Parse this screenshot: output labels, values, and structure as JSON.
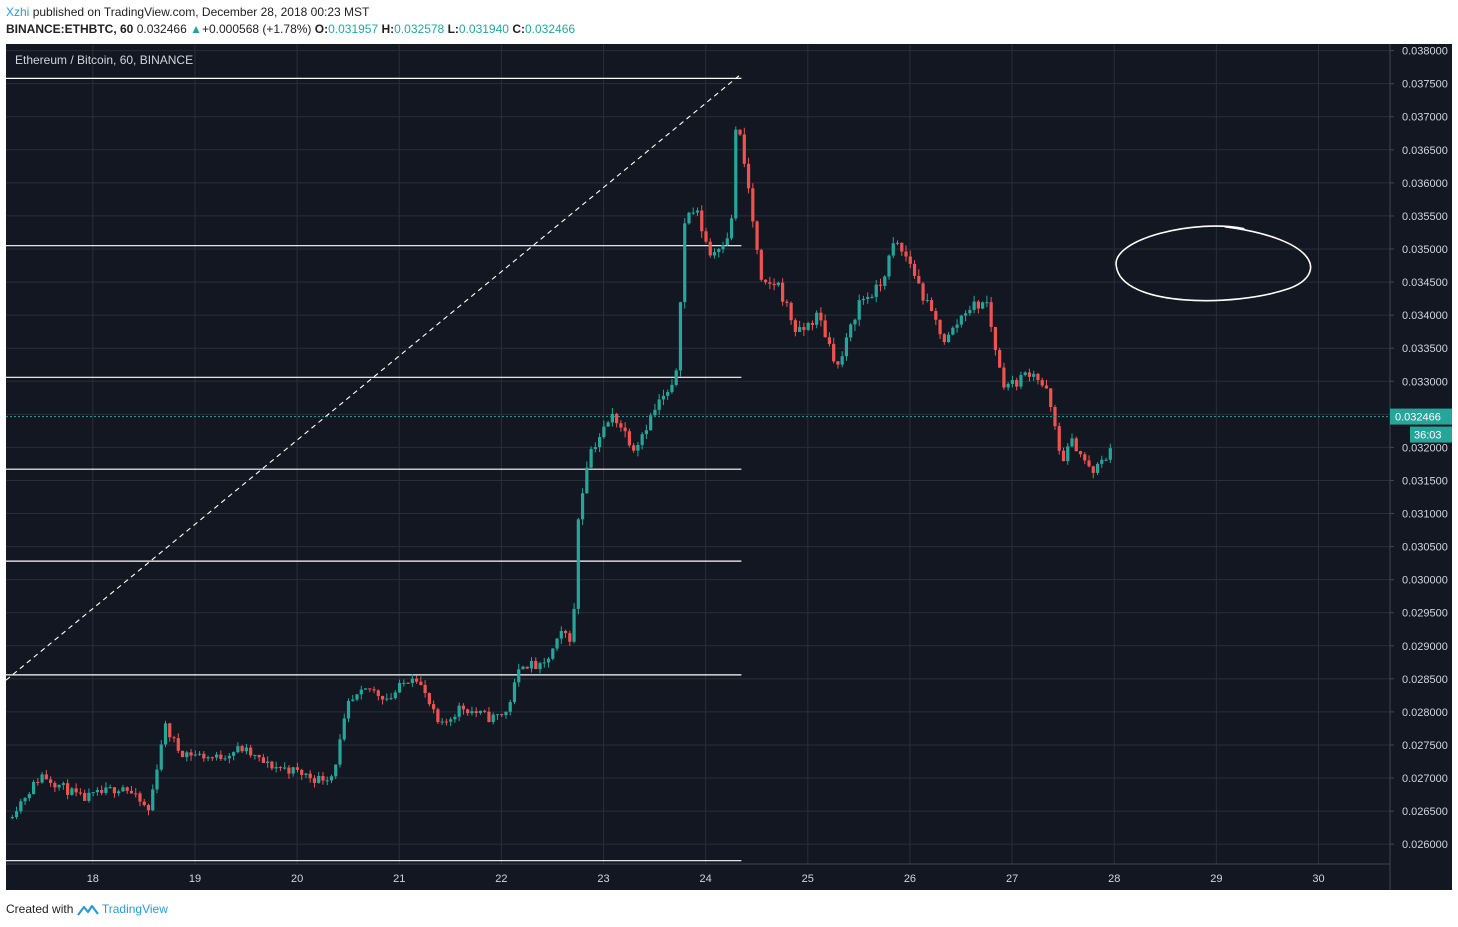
{
  "header": {
    "author": "Xzhi",
    "published": "published on TradingView.com, December 28, 2018 00:23 MST"
  },
  "ohlc": {
    "symbol": "BINANCE:ETHBTC, 60",
    "last": "0.032466",
    "arrow": "▲",
    "change": "+0.000568 (+1.78%)",
    "o_label": "O:",
    "o": "0.031957",
    "h_label": "H:",
    "h": "0.032578",
    "l_label": "L:",
    "l": "0.031940",
    "c_label": "C:",
    "c": "0.032466"
  },
  "footer": {
    "created": "Created with",
    "brand": "TradingView"
  },
  "colors": {
    "background": "#131722",
    "grid": "#2a2e39",
    "up": "#26a69a",
    "down": "#ef5350",
    "axis_text": "#d1d4dc",
    "drawing": "#ffffff",
    "price_line": "#26a69a"
  },
  "chart_data": {
    "type": "candlestick",
    "title": "Ethereum / Bitcoin, 60, BINANCE",
    "x_ticks": [
      "18",
      "19",
      "20",
      "21",
      "22",
      "23",
      "24",
      "25",
      "26",
      "27",
      "28",
      "29",
      "30"
    ],
    "x_range": [
      17.15,
      30.7
    ],
    "y_ticks": [
      "0.038000",
      "0.037500",
      "0.037000",
      "0.036500",
      "0.036000",
      "0.035500",
      "0.035000",
      "0.034500",
      "0.034000",
      "0.033500",
      "0.033000",
      "0.032500",
      "0.032000",
      "0.031500",
      "0.031000",
      "0.030500",
      "0.030000",
      "0.029500",
      "0.029000",
      "0.028500",
      "0.028000",
      "0.027500",
      "0.027000",
      "0.026500",
      "0.026000"
    ],
    "y_range": [
      0.0257,
      0.0381
    ],
    "last_price": "0.032466",
    "countdown": "36:03",
    "horizontal_levels": [
      0.03758,
      0.03505,
      0.03306,
      0.03167,
      0.03028,
      0.02856,
      0.02575
    ],
    "levels_x_range": [
      17.15,
      24.35
    ],
    "trend_line": {
      "x": [
        17.15,
        24.35
      ],
      "y": [
        0.02848,
        0.03765
      ]
    },
    "path_anchors": [
      [
        17.17,
        0.0264
      ],
      [
        17.5,
        0.02705
      ],
      [
        17.9,
        0.02668
      ],
      [
        18.3,
        0.02688
      ],
      [
        18.55,
        0.0265
      ],
      [
        18.7,
        0.0278
      ],
      [
        18.85,
        0.0274
      ],
      [
        19.2,
        0.0273
      ],
      [
        19.45,
        0.02745
      ],
      [
        19.7,
        0.0272
      ],
      [
        19.95,
        0.02712
      ],
      [
        20.2,
        0.02698
      ],
      [
        20.35,
        0.02705
      ],
      [
        20.5,
        0.0281
      ],
      [
        20.7,
        0.02835
      ],
      [
        20.9,
        0.0282
      ],
      [
        21.15,
        0.0286
      ],
      [
        21.4,
        0.02775
      ],
      [
        21.6,
        0.02808
      ],
      [
        21.9,
        0.0279
      ],
      [
        22.05,
        0.028
      ],
      [
        22.2,
        0.02875
      ],
      [
        22.4,
        0.02865
      ],
      [
        22.6,
        0.0292
      ],
      [
        22.7,
        0.0291
      ],
      [
        22.75,
        0.0309
      ],
      [
        22.85,
        0.0319
      ],
      [
        23.1,
        0.0325
      ],
      [
        23.3,
        0.032
      ],
      [
        23.55,
        0.0327
      ],
      [
        23.7,
        0.0329
      ],
      [
        23.8,
        0.0355
      ],
      [
        23.9,
        0.0356
      ],
      [
        24.05,
        0.0349
      ],
      [
        24.25,
        0.0353
      ],
      [
        24.3,
        0.037
      ],
      [
        24.42,
        0.0359
      ],
      [
        24.55,
        0.0344
      ],
      [
        24.7,
        0.0345
      ],
      [
        24.9,
        0.0337
      ],
      [
        25.1,
        0.034
      ],
      [
        25.3,
        0.0332
      ],
      [
        25.5,
        0.0342
      ],
      [
        25.7,
        0.0344
      ],
      [
        25.85,
        0.0351
      ],
      [
        26.0,
        0.0348
      ],
      [
        26.15,
        0.0342
      ],
      [
        26.35,
        0.0336
      ],
      [
        26.55,
        0.0341
      ],
      [
        26.75,
        0.0342
      ],
      [
        26.9,
        0.033
      ],
      [
        27.0,
        0.03295
      ],
      [
        27.2,
        0.03318
      ],
      [
        27.35,
        0.0328
      ],
      [
        27.48,
        0.0318
      ],
      [
        27.6,
        0.0321
      ],
      [
        27.78,
        0.0316
      ],
      [
        27.95,
        0.0319
      ],
      [
        28.0,
        0.03246
      ]
    ]
  }
}
